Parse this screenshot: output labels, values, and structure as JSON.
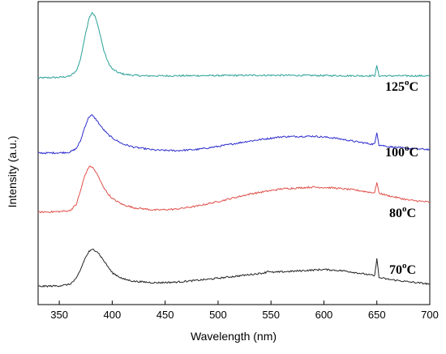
{
  "chart_data": {
    "type": "line",
    "xlabel": "Wavelength (nm)",
    "ylabel": "Intensity (a.u.)",
    "xlim": [
      330,
      700
    ],
    "xticks": [
      350,
      400,
      450,
      500,
      550,
      600,
      650,
      700
    ],
    "yticks_shown": false,
    "y_units": "relative (0 = plot bottom, 100 = plot top; curves offset vertically)",
    "grid": false,
    "series": [
      {
        "name": "125°C",
        "label_main": "125",
        "label_sup": "o",
        "label_tail": "C",
        "color": "#2aa198",
        "x": [
          330,
          350,
          360,
          366,
          370,
          374,
          378,
          381,
          384,
          388,
          392,
          396,
          400,
          406,
          412,
          420,
          430,
          450,
          500,
          550,
          600,
          640,
          648,
          650,
          652,
          660,
          700
        ],
        "y": [
          74.8,
          75.0,
          75.4,
          77.0,
          81.0,
          88.0,
          94.5,
          96.5,
          95.0,
          90.0,
          84.0,
          80.0,
          77.8,
          76.5,
          76.0,
          75.7,
          75.5,
          75.5,
          75.6,
          75.7,
          75.6,
          75.5,
          75.6,
          78.8,
          75.5,
          75.5,
          75.5
        ]
      },
      {
        "name": "100°C",
        "label_main": "100",
        "label_sup": "o",
        "label_tail": "C",
        "color": "#2e2ecf",
        "x": [
          330,
          350,
          360,
          366,
          370,
          374,
          378,
          381,
          385,
          390,
          395,
          400,
          410,
          420,
          440,
          460,
          480,
          500,
          530,
          560,
          590,
          610,
          630,
          645,
          648,
          650,
          652,
          660,
          680,
          700
        ],
        "y": [
          50.0,
          50.1,
          50.3,
          51.5,
          54.0,
          58.5,
          62.0,
          62.5,
          61.0,
          58.5,
          56.5,
          55.0,
          53.0,
          52.0,
          51.0,
          50.8,
          51.2,
          52.2,
          54.0,
          55.4,
          55.6,
          55.0,
          53.8,
          53.0,
          53.0,
          57.0,
          52.7,
          52.2,
          51.5,
          51.2
        ]
      },
      {
        "name": "80°C",
        "label_main": "80",
        "label_sup": "o",
        "label_tail": "C",
        "color": "#e0504a",
        "x": [
          330,
          350,
          360,
          366,
          370,
          374,
          378,
          381,
          385,
          390,
          395,
          400,
          410,
          420,
          440,
          460,
          480,
          500,
          530,
          560,
          590,
          610,
          630,
          645,
          648,
          650,
          652,
          660,
          680,
          700
        ],
        "y": [
          30.5,
          30.7,
          31.0,
          33.0,
          37.5,
          42.5,
          45.5,
          45.5,
          43.5,
          40.0,
          37.0,
          35.0,
          33.0,
          32.0,
          31.2,
          31.5,
          32.5,
          34.0,
          36.5,
          38.2,
          38.8,
          38.5,
          37.8,
          37.0,
          37.0,
          40.5,
          36.8,
          36.0,
          34.5,
          33.8
        ]
      },
      {
        "name": "70°C",
        "label_main": "70",
        "label_sup": "o",
        "label_tail": "C",
        "color": "#222222",
        "x": [
          330,
          350,
          360,
          366,
          370,
          374,
          378,
          382,
          386,
          390,
          395,
          400,
          410,
          420,
          440,
          460,
          480,
          500,
          520,
          540,
          545,
          547,
          550,
          570,
          590,
          600,
          620,
          640,
          648,
          650,
          652,
          660,
          680,
          700
        ],
        "y": [
          6.0,
          6.2,
          6.7,
          8.5,
          11.5,
          15.0,
          17.5,
          18.2,
          17.5,
          15.5,
          13.0,
          10.5,
          8.5,
          7.7,
          7.2,
          7.4,
          8.0,
          8.7,
          9.5,
          10.3,
          10.6,
          11.2,
          10.6,
          11.0,
          11.4,
          11.6,
          11.1,
          10.0,
          9.5,
          15.5,
          8.9,
          8.4,
          7.5,
          6.8
        ]
      }
    ]
  }
}
